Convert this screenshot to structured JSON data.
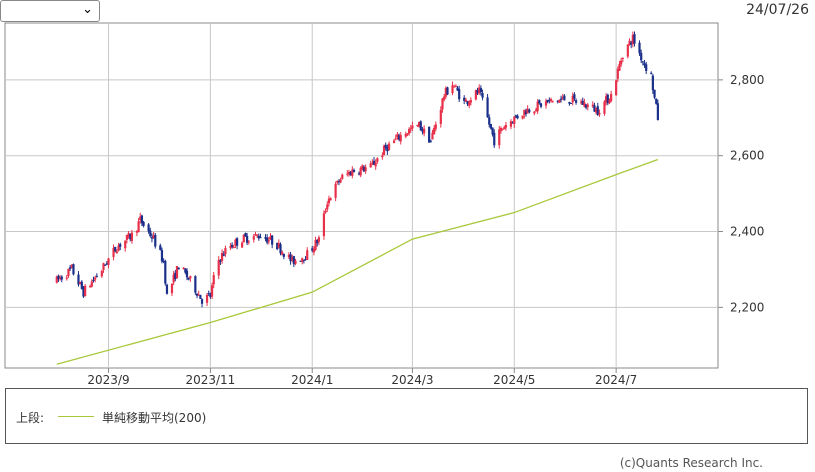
{
  "header": {
    "period_select_value": "",
    "date": "24/07/26"
  },
  "legend": {
    "caption": "上段:",
    "ma_label": "単純移動平均(200)"
  },
  "footer": {
    "credit": "(c)Quants Research Inc."
  },
  "colors": {
    "up": "#e8304a",
    "down": "#1a2f8a",
    "ma": "#a8c83a",
    "grid": "#c8c8c8",
    "frame": "#888888"
  },
  "chart_data": {
    "type": "candlestick",
    "title": "",
    "ylim": [
      2040,
      2950
    ],
    "y_ticks": [
      2200,
      2400,
      2600,
      2800
    ],
    "y_tick_labels": [
      "2,200",
      "2,400",
      "2,600",
      "2,800"
    ],
    "x_ticks": [
      "2023-09-01",
      "2023-11-01",
      "2024-01-01",
      "2024-03-01",
      "2024-05-01",
      "2024-07-01"
    ],
    "x_tick_labels": [
      "2023/9",
      "2023/11",
      "2024/1",
      "2024/3",
      "2024/5",
      "2024/7"
    ],
    "x_range": [
      "2023-07-01",
      "2024-08-31"
    ],
    "grid": true,
    "y_axis_position": "right",
    "legend_position": "bottom",
    "price_path": [
      [
        "2023-08-01",
        2270
      ],
      [
        "2023-08-10",
        2300
      ],
      [
        "2023-08-17",
        2240
      ],
      [
        "2023-08-28",
        2300
      ],
      [
        "2023-09-06",
        2360
      ],
      [
        "2023-09-15",
        2390
      ],
      [
        "2023-09-20",
        2430
      ],
      [
        "2023-09-28",
        2380
      ],
      [
        "2023-10-04",
        2320
      ],
      [
        "2023-10-06",
        2230
      ],
      [
        "2023-10-13",
        2310
      ],
      [
        "2023-10-20",
        2270
      ],
      [
        "2023-10-27",
        2220
      ],
      [
        "2023-11-01",
        2230
      ],
      [
        "2023-11-05",
        2320
      ],
      [
        "2023-11-12",
        2360
      ],
      [
        "2023-11-20",
        2380
      ],
      [
        "2023-12-01",
        2390
      ],
      [
        "2023-12-10",
        2370
      ],
      [
        "2023-12-20",
        2320
      ],
      [
        "2023-12-29",
        2340
      ],
      [
        "2024-01-05",
        2380
      ],
      [
        "2024-01-10",
        2480
      ],
      [
        "2024-01-18",
        2540
      ],
      [
        "2024-01-25",
        2560
      ],
      [
        "2024-02-05",
        2570
      ],
      [
        "2024-02-14",
        2620
      ],
      [
        "2024-02-25",
        2660
      ],
      [
        "2024-03-05",
        2680
      ],
      [
        "2024-03-12",
        2640
      ],
      [
        "2024-03-20",
        2760
      ],
      [
        "2024-03-25",
        2790
      ],
      [
        "2024-04-01",
        2740
      ],
      [
        "2024-04-10",
        2770
      ],
      [
        "2024-04-19",
        2640
      ],
      [
        "2024-04-25",
        2680
      ],
      [
        "2024-05-08",
        2720
      ],
      [
        "2024-05-20",
        2740
      ],
      [
        "2024-06-01",
        2750
      ],
      [
        "2024-06-10",
        2740
      ],
      [
        "2024-06-20",
        2720
      ],
      [
        "2024-06-28",
        2760
      ],
      [
        "2024-07-05",
        2870
      ],
      [
        "2024-07-11",
        2910
      ],
      [
        "2024-07-17",
        2850
      ],
      [
        "2024-07-22",
        2810
      ],
      [
        "2024-07-24",
        2750
      ],
      [
        "2024-07-26",
        2700
      ]
    ],
    "series": [
      {
        "name": "単純移動平均(200)",
        "type": "line",
        "points": [
          [
            "2023-08-01",
            2050
          ],
          [
            "2023-11-01",
            2160
          ],
          [
            "2024-01-01",
            2240
          ],
          [
            "2024-03-01",
            2380
          ],
          [
            "2024-05-01",
            2450
          ],
          [
            "2024-07-01",
            2550
          ],
          [
            "2024-07-26",
            2590
          ]
        ]
      }
    ]
  }
}
